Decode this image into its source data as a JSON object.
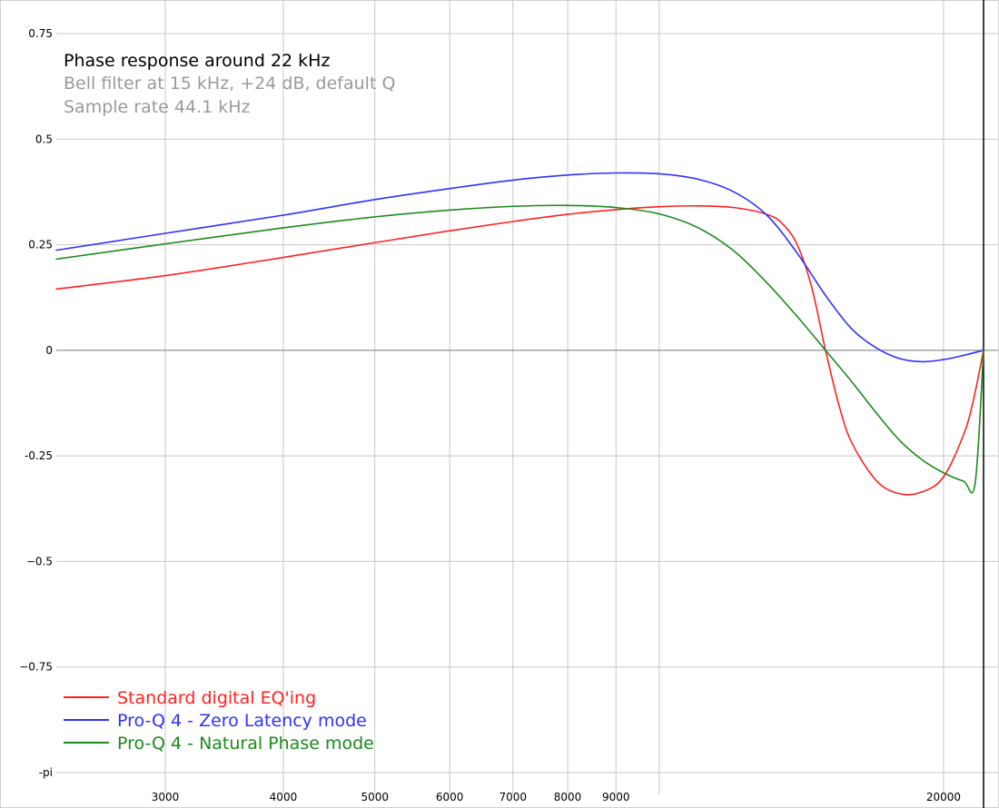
{
  "chart_data": {
    "type": "line",
    "title": "Phase response around 22 kHz",
    "subtitle_lines": [
      "Bell filter at 15 kHz, +24 dB, default Q",
      "Sample rate 44.1 kHz"
    ],
    "x_scale": "log",
    "xlim": [
      2300,
      22050
    ],
    "ylim": [
      -1,
      0.75
    ],
    "x_ticks": [
      {
        "value": 3000,
        "label": "3000"
      },
      {
        "value": 4000,
        "label": "4000"
      },
      {
        "value": 5000,
        "label": "5000"
      },
      {
        "value": 6000,
        "label": "6000"
      },
      {
        "value": 7000,
        "label": "7000"
      },
      {
        "value": 8000,
        "label": "8000"
      },
      {
        "value": 9000,
        "label": "9000"
      },
      {
        "value": 20000,
        "label": "20000"
      }
    ],
    "x_grid_extra": [
      10000
    ],
    "y_ticks": [
      {
        "value": 0.75,
        "label": "0.75"
      },
      {
        "value": 0.5,
        "label": "0.5"
      },
      {
        "value": 0.25,
        "label": "0.25"
      },
      {
        "value": 0,
        "label": "0"
      },
      {
        "value": -0.25,
        "label": "-0.25"
      },
      {
        "value": -0.5,
        "label": "−0.5"
      },
      {
        "value": -0.75,
        "label": "−0.75"
      },
      {
        "value": -1,
        "label": "-pi"
      }
    ],
    "grid": true,
    "legend_position": "bottom-left",
    "series": [
      {
        "name": "Standard digital EQ'ing",
        "color": "#ff2020",
        "points": [
          [
            2300,
            0.145
          ],
          [
            3000,
            0.177
          ],
          [
            4000,
            0.22
          ],
          [
            5000,
            0.255
          ],
          [
            6000,
            0.283
          ],
          [
            7000,
            0.305
          ],
          [
            8000,
            0.322
          ],
          [
            9000,
            0.333
          ],
          [
            10000,
            0.34
          ],
          [
            11000,
            0.342
          ],
          [
            12000,
            0.338
          ],
          [
            13000,
            0.322
          ],
          [
            13500,
            0.3
          ],
          [
            14000,
            0.25
          ],
          [
            14500,
            0.15
          ],
          [
            15000,
            0.0
          ],
          [
            15500,
            -0.13
          ],
          [
            16000,
            -0.22
          ],
          [
            17000,
            -0.31
          ],
          [
            18000,
            -0.34
          ],
          [
            19000,
            -0.335
          ],
          [
            20000,
            -0.3
          ],
          [
            21000,
            -0.2
          ],
          [
            21500,
            -0.12
          ],
          [
            22050,
            0.0
          ]
        ]
      },
      {
        "name": "Pro-Q 4 - Zero Latency mode",
        "color": "#3030ff",
        "points": [
          [
            2300,
            0.237
          ],
          [
            3000,
            0.277
          ],
          [
            4000,
            0.32
          ],
          [
            5000,
            0.357
          ],
          [
            6000,
            0.383
          ],
          [
            7000,
            0.403
          ],
          [
            8000,
            0.415
          ],
          [
            9000,
            0.42
          ],
          [
            10000,
            0.418
          ],
          [
            11000,
            0.405
          ],
          [
            12000,
            0.375
          ],
          [
            13000,
            0.32
          ],
          [
            14000,
            0.23
          ],
          [
            15000,
            0.13
          ],
          [
            16000,
            0.05
          ],
          [
            17000,
            0.005
          ],
          [
            18000,
            -0.02
          ],
          [
            19000,
            -0.027
          ],
          [
            20000,
            -0.022
          ],
          [
            21000,
            -0.012
          ],
          [
            22050,
            0.0
          ]
        ]
      },
      {
        "name": "Pro-Q 4  - Natural Phase mode",
        "color": "#1a8a1a",
        "points": [
          [
            2300,
            0.216
          ],
          [
            3000,
            0.252
          ],
          [
            4000,
            0.29
          ],
          [
            5000,
            0.316
          ],
          [
            6000,
            0.332
          ],
          [
            7000,
            0.341
          ],
          [
            8000,
            0.343
          ],
          [
            9000,
            0.338
          ],
          [
            10000,
            0.323
          ],
          [
            11000,
            0.29
          ],
          [
            12000,
            0.235
          ],
          [
            13000,
            0.16
          ],
          [
            14000,
            0.08
          ],
          [
            15000,
            0.0
          ],
          [
            16000,
            -0.075
          ],
          [
            17000,
            -0.15
          ],
          [
            18000,
            -0.215
          ],
          [
            19000,
            -0.26
          ],
          [
            20000,
            -0.29
          ],
          [
            21000,
            -0.31
          ],
          [
            21600,
            -0.315
          ],
          [
            22050,
            0.0
          ]
        ]
      }
    ]
  }
}
